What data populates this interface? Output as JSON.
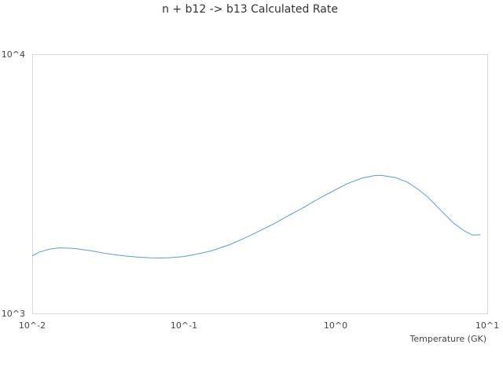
{
  "chart_data": {
    "type": "line",
    "title": "n + b12 -> b13 Calculated Rate",
    "xlabel": "Temperature (GK)",
    "ylabel": "",
    "x_scale": "log",
    "y_scale": "log",
    "xlim": [
      0.01,
      10
    ],
    "ylim": [
      1000,
      10000
    ],
    "x_ticks": [
      {
        "value": 0.01,
        "label": "10^-2"
      },
      {
        "value": 0.1,
        "label": "10^-1"
      },
      {
        "value": 1,
        "label": "10^0"
      },
      {
        "value": 10,
        "label": "10^1"
      }
    ],
    "y_ticks": [
      {
        "value": 1000,
        "label": "10^3"
      },
      {
        "value": 10000,
        "label": "10^4"
      }
    ],
    "grid": false,
    "legend": "none",
    "series": [
      {
        "color": "#5b9bd5",
        "x": [
          0.01,
          0.011,
          0.013,
          0.015,
          0.018,
          0.02,
          0.025,
          0.03,
          0.035,
          0.04,
          0.05,
          0.06,
          0.07,
          0.08,
          0.09,
          0.1,
          0.12,
          0.15,
          0.2,
          0.25,
          0.3,
          0.4,
          0.5,
          0.6,
          0.7,
          0.8,
          1.0,
          1.2,
          1.5,
          1.8,
          2.0,
          2.5,
          3.0,
          3.5,
          4.0,
          5.0,
          6.0,
          7.0,
          8.0,
          9.0
        ],
        "y": [
          1665,
          1720,
          1770,
          1790,
          1785,
          1773,
          1740,
          1705,
          1685,
          1668,
          1648,
          1638,
          1636,
          1640,
          1648,
          1657,
          1690,
          1740,
          1840,
          1950,
          2050,
          2230,
          2400,
          2540,
          2680,
          2800,
          3000,
          3170,
          3330,
          3400,
          3410,
          3340,
          3200,
          3010,
          2830,
          2480,
          2230,
          2085,
          2005,
          2010
        ]
      }
    ]
  }
}
